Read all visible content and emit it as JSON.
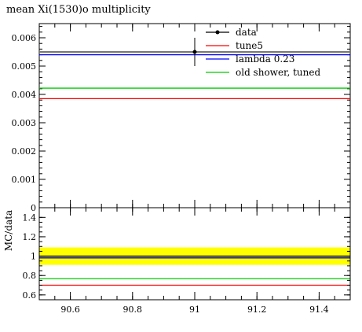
{
  "chart_data": [
    {
      "type": "line",
      "title": "mean Xi(1530)o multiplicity",
      "xlabel": "",
      "ylabel": "",
      "xlim": [
        90.5,
        91.5
      ],
      "ylim": [
        0,
        0.0065
      ],
      "xticks": [
        90.6,
        90.8,
        91,
        91.2,
        91.4
      ],
      "yticks": [
        0,
        0.001,
        0.002,
        0.003,
        0.004,
        0.005,
        0.006
      ],
      "ytick_labels": [
        "0",
        "0.001",
        "0.002",
        "0.003",
        "0.004",
        "0.005",
        "0.006"
      ],
      "data_point": {
        "name": "data",
        "x": 91,
        "y": 0.0055,
        "yerr": 0.0005,
        "color": "#000000"
      },
      "series": [
        {
          "name": "tune5",
          "x": [
            90.5,
            91.5
          ],
          "values": [
            0.00385,
            0.00385
          ],
          "color": "#ff0000"
        },
        {
          "name": "lambda 0.23",
          "x": [
            90.5,
            91.5
          ],
          "values": [
            0.0054,
            0.0054
          ],
          "color": "#0000ff"
        },
        {
          "name": "old shower, tuned",
          "x": [
            90.5,
            91.5
          ],
          "values": [
            0.00422,
            0.00422
          ],
          "color": "#00cc00"
        }
      ],
      "data_band_line": 0.0055,
      "legend": {
        "position": "top-right",
        "entries": [
          {
            "label": "data",
            "color": "#000000",
            "marker": "point"
          },
          {
            "label": "tune5",
            "color": "#ff0000",
            "marker": "line"
          },
          {
            "label": "lambda 0.23",
            "color": "#0000ff",
            "marker": "line"
          },
          {
            "label": "old shower, tuned",
            "color": "#00cc00",
            "marker": "line"
          }
        ]
      }
    },
    {
      "type": "line",
      "ylabel": "MC/data",
      "xlim": [
        90.5,
        91.5
      ],
      "ylim": [
        0.55,
        1.5
      ],
      "xticks": [
        90.6,
        90.8,
        91,
        91.2,
        91.4
      ],
      "xtick_labels": [
        "90.6",
        "90.8",
        "91",
        "91.2",
        "91.4"
      ],
      "yticks": [
        0.6,
        0.8,
        1,
        1.2,
        1.4
      ],
      "ytick_labels": [
        "0.6",
        "0.8",
        "1",
        "1.2",
        "1.4"
      ],
      "band": {
        "low": 0.91,
        "high": 1.09,
        "color": "#ffff00"
      },
      "series": [
        {
          "name": "data",
          "x": [
            90.5,
            91.5
          ],
          "values": [
            1.0,
            1.0
          ],
          "color": "#000000"
        },
        {
          "name": "tune5",
          "x": [
            90.5,
            91.5
          ],
          "values": [
            0.7,
            0.7
          ],
          "color": "#ff0000"
        },
        {
          "name": "lambda 0.23",
          "x": [
            90.5,
            91.5
          ],
          "values": [
            0.982,
            0.982
          ],
          "color": "#0000ff"
        },
        {
          "name": "old shower, tuned",
          "x": [
            90.5,
            91.5
          ],
          "values": [
            0.767,
            0.767
          ],
          "color": "#00cc00"
        }
      ]
    }
  ]
}
